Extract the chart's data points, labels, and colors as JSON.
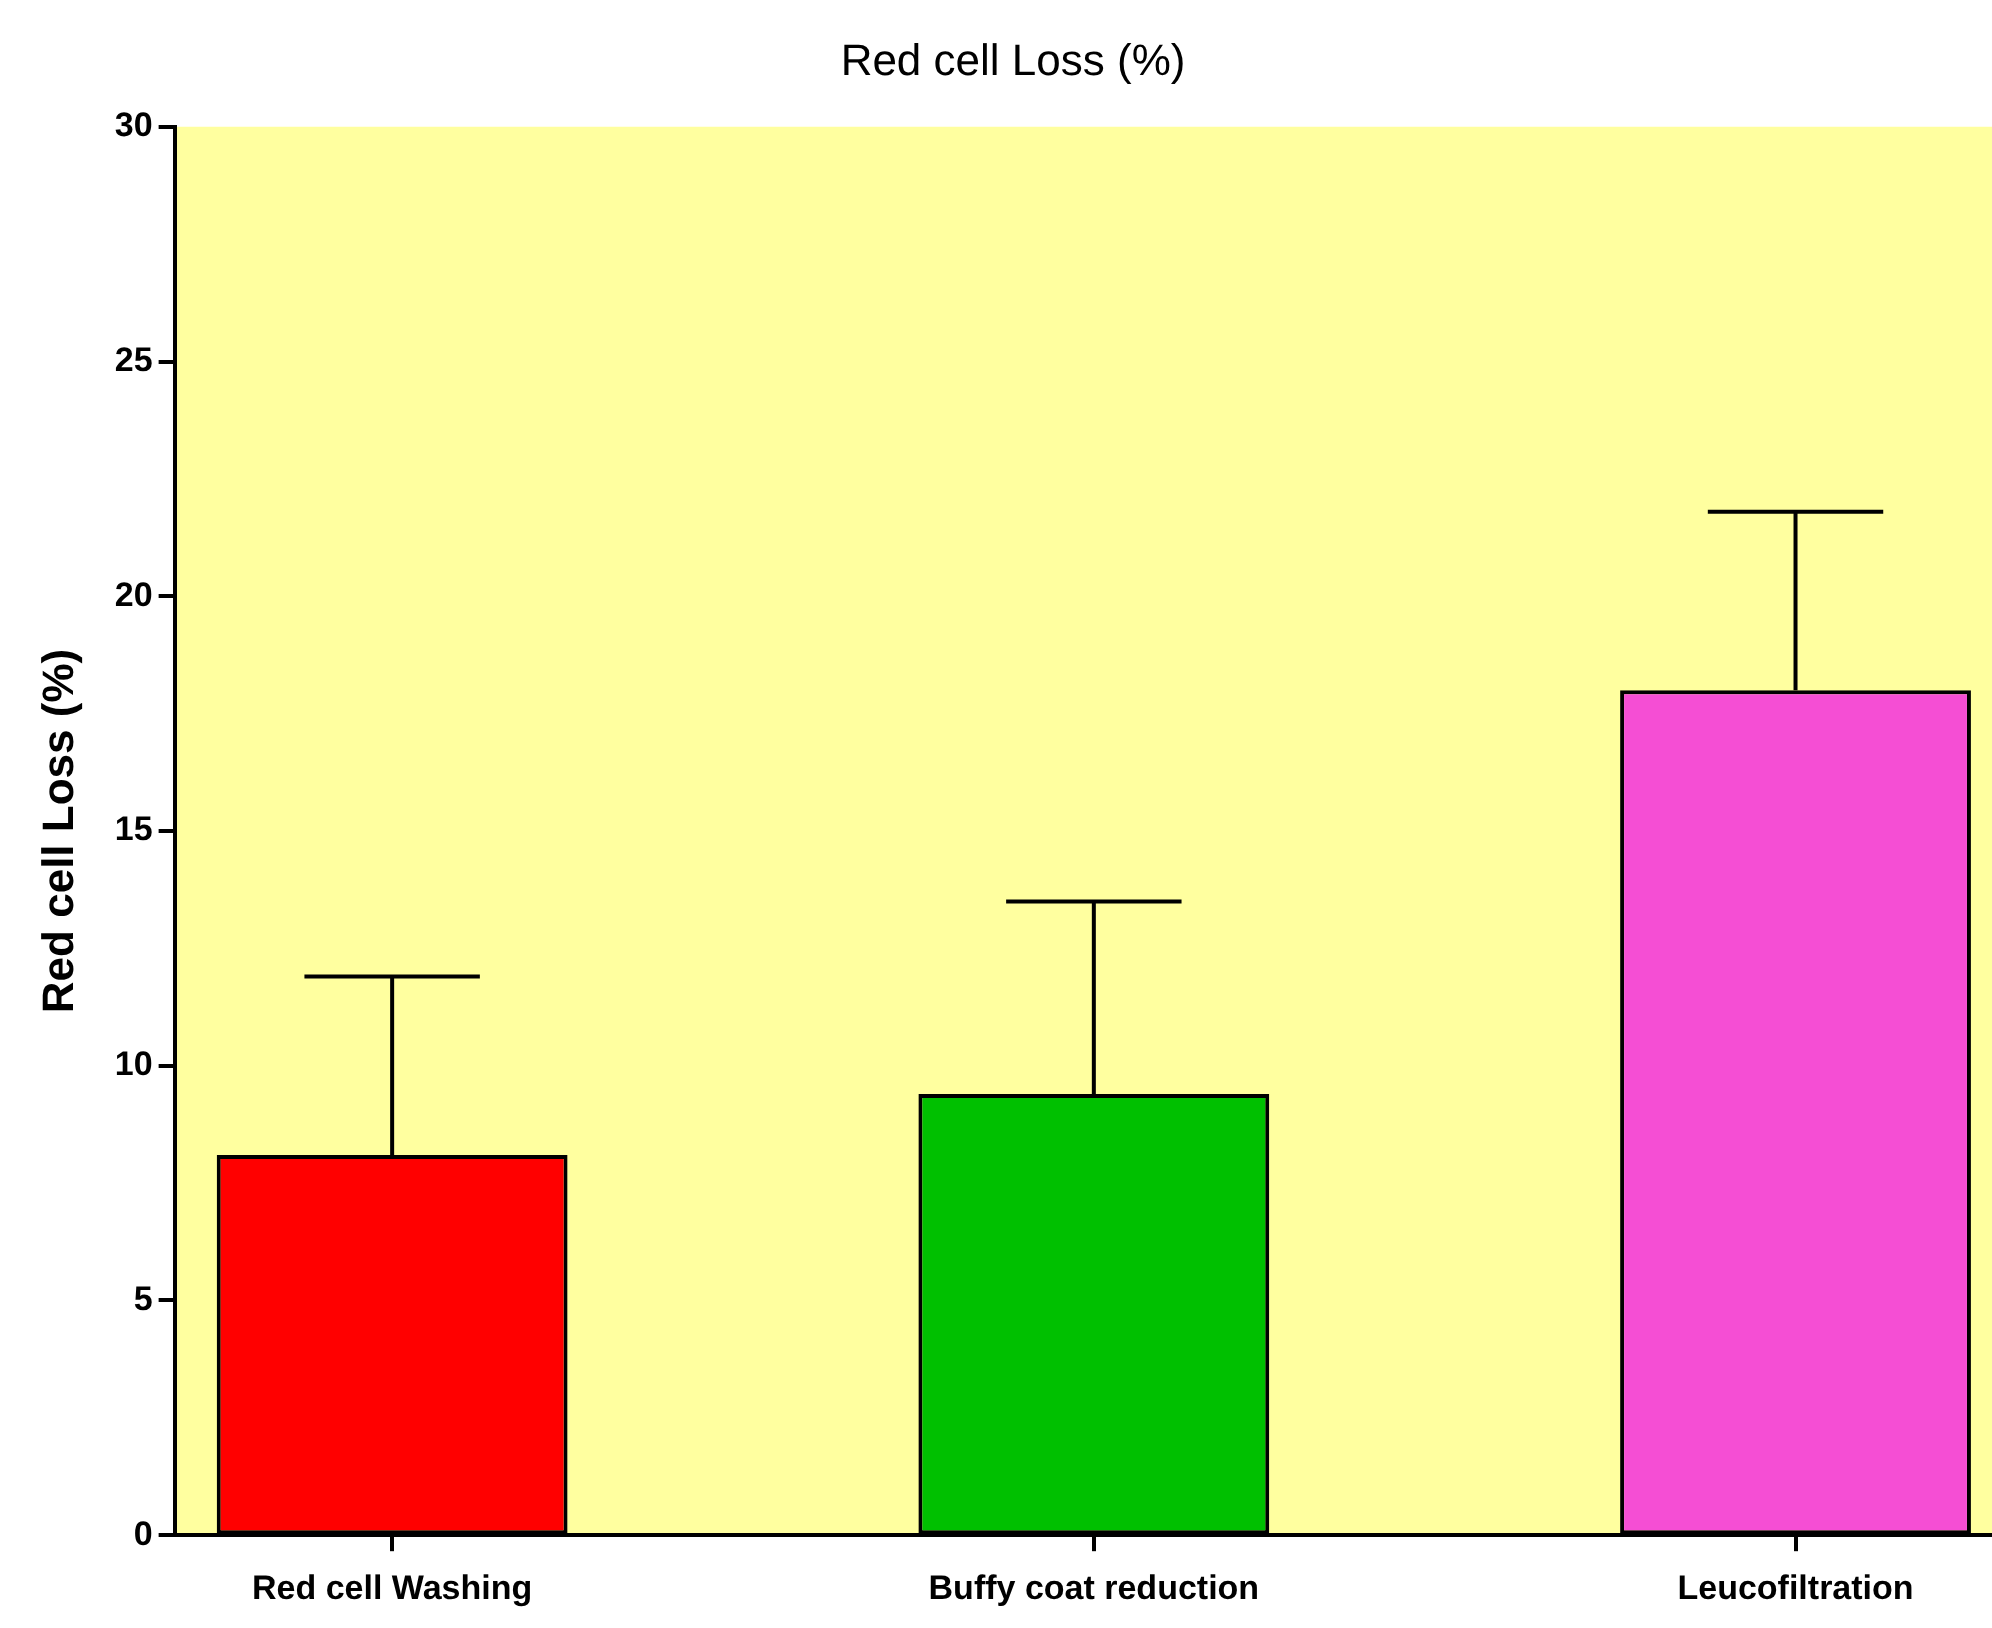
{
  "chart_data": {
    "type": "bar",
    "title": "Red cell Loss (%)",
    "ylabel": "Red cell Loss (%)",
    "categories": [
      "Red cell Washing",
      "Buffy coat reduction",
      "Leucofiltration"
    ],
    "values": [
      8.1,
      9.4,
      18.0
    ],
    "colors": [
      "#ff0000",
      "#00c000",
      "#f54ed4"
    ],
    "errors": [
      [
        8.1,
        11.9
      ],
      [
        9.4,
        13.5
      ],
      [
        18.0,
        21.8
      ]
    ],
    "ylim": [
      0,
      30
    ],
    "yticks": [
      0,
      5,
      10,
      15,
      20,
      25,
      30
    ]
  }
}
